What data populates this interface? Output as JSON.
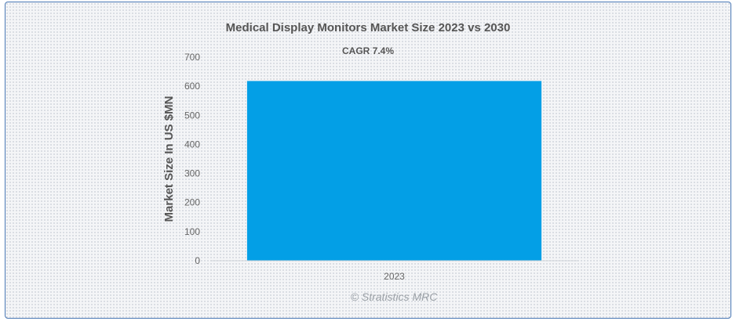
{
  "chart_data": {
    "type": "bar",
    "title": "Medical Display Monitors Market Size 2023 vs 2030",
    "subtitle": "CAGR 7.4%",
    "categories": [
      "2023"
    ],
    "values": [
      618
    ],
    "ylabel": "Market Size In US $MN",
    "xlabel": "",
    "ylim": [
      0,
      700
    ],
    "yticks": [
      0,
      100,
      200,
      300,
      400,
      500,
      600,
      700
    ],
    "grid": false,
    "bar_color": "#039fe6"
  },
  "credit": "© Stratistics MRC"
}
